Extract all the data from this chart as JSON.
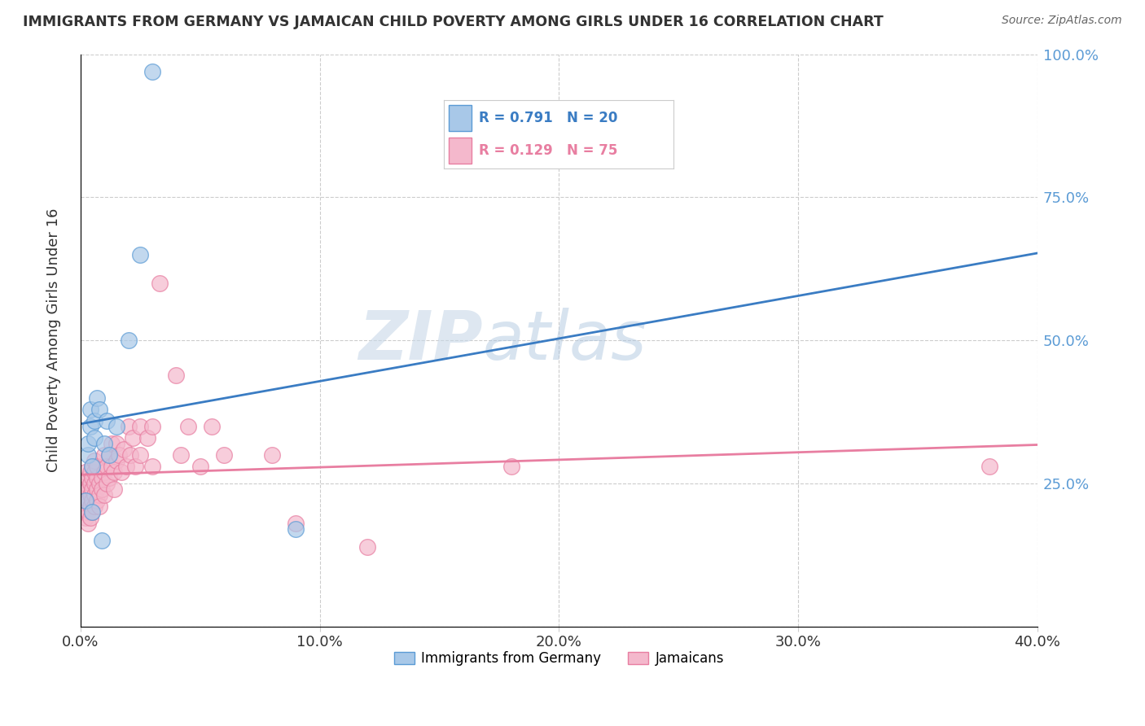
{
  "title": "IMMIGRANTS FROM GERMANY VS JAMAICAN CHILD POVERTY AMONG GIRLS UNDER 16 CORRELATION CHART",
  "source": "Source: ZipAtlas.com",
  "ylabel": "Child Poverty Among Girls Under 16",
  "watermark": "ZIPatlas",
  "legend": [
    {
      "label": "Immigrants from Germany",
      "color": "#6baed6",
      "R": 0.791,
      "N": 20
    },
    {
      "label": "Jamaicans",
      "color": "#fa9fb5",
      "R": 0.129,
      "N": 75
    }
  ],
  "xlim": [
    0.0,
    0.4
  ],
  "ylim": [
    0.0,
    1.0
  ],
  "xticks": [
    0.0,
    0.1,
    0.2,
    0.3,
    0.4
  ],
  "yticks": [
    0.0,
    0.25,
    0.5,
    0.75,
    1.0
  ],
  "xtick_labels": [
    "0.0%",
    "10.0%",
    "20.0%",
    "30.0%",
    "40.0%"
  ],
  "ytick_labels_right": [
    "",
    "25.0%",
    "50.0%",
    "75.0%",
    "100.0%"
  ],
  "blue_scatter": [
    [
      0.002,
      0.22
    ],
    [
      0.003,
      0.3
    ],
    [
      0.003,
      0.32
    ],
    [
      0.004,
      0.35
    ],
    [
      0.004,
      0.38
    ],
    [
      0.005,
      0.2
    ],
    [
      0.005,
      0.28
    ],
    [
      0.006,
      0.33
    ],
    [
      0.006,
      0.36
    ],
    [
      0.007,
      0.4
    ],
    [
      0.008,
      0.38
    ],
    [
      0.009,
      0.15
    ],
    [
      0.01,
      0.32
    ],
    [
      0.011,
      0.36
    ],
    [
      0.012,
      0.3
    ],
    [
      0.015,
      0.35
    ],
    [
      0.02,
      0.5
    ],
    [
      0.025,
      0.65
    ],
    [
      0.03,
      0.97
    ],
    [
      0.09,
      0.17
    ]
  ],
  "pink_scatter": [
    [
      0.001,
      0.22
    ],
    [
      0.001,
      0.24
    ],
    [
      0.001,
      0.2
    ],
    [
      0.002,
      0.23
    ],
    [
      0.002,
      0.25
    ],
    [
      0.002,
      0.21
    ],
    [
      0.002,
      0.27
    ],
    [
      0.002,
      0.19
    ],
    [
      0.003,
      0.22
    ],
    [
      0.003,
      0.24
    ],
    [
      0.003,
      0.26
    ],
    [
      0.003,
      0.2
    ],
    [
      0.003,
      0.18
    ],
    [
      0.004,
      0.23
    ],
    [
      0.004,
      0.25
    ],
    [
      0.004,
      0.21
    ],
    [
      0.004,
      0.27
    ],
    [
      0.004,
      0.19
    ],
    [
      0.005,
      0.24
    ],
    [
      0.005,
      0.26
    ],
    [
      0.005,
      0.22
    ],
    [
      0.005,
      0.2
    ],
    [
      0.005,
      0.28
    ],
    [
      0.006,
      0.23
    ],
    [
      0.006,
      0.25
    ],
    [
      0.006,
      0.21
    ],
    [
      0.006,
      0.27
    ],
    [
      0.006,
      0.29
    ],
    [
      0.007,
      0.24
    ],
    [
      0.007,
      0.22
    ],
    [
      0.007,
      0.26
    ],
    [
      0.007,
      0.28
    ],
    [
      0.008,
      0.25
    ],
    [
      0.008,
      0.23
    ],
    [
      0.008,
      0.21
    ],
    [
      0.009,
      0.26
    ],
    [
      0.009,
      0.24
    ],
    [
      0.01,
      0.27
    ],
    [
      0.01,
      0.23
    ],
    [
      0.01,
      0.3
    ],
    [
      0.011,
      0.28
    ],
    [
      0.011,
      0.25
    ],
    [
      0.012,
      0.26
    ],
    [
      0.012,
      0.3
    ],
    [
      0.013,
      0.28
    ],
    [
      0.013,
      0.32
    ],
    [
      0.014,
      0.27
    ],
    [
      0.014,
      0.24
    ],
    [
      0.015,
      0.32
    ],
    [
      0.015,
      0.29
    ],
    [
      0.016,
      0.3
    ],
    [
      0.017,
      0.27
    ],
    [
      0.018,
      0.31
    ],
    [
      0.019,
      0.28
    ],
    [
      0.02,
      0.35
    ],
    [
      0.021,
      0.3
    ],
    [
      0.022,
      0.33
    ],
    [
      0.023,
      0.28
    ],
    [
      0.025,
      0.35
    ],
    [
      0.025,
      0.3
    ],
    [
      0.028,
      0.33
    ],
    [
      0.03,
      0.28
    ],
    [
      0.03,
      0.35
    ],
    [
      0.033,
      0.6
    ],
    [
      0.04,
      0.44
    ],
    [
      0.042,
      0.3
    ],
    [
      0.045,
      0.35
    ],
    [
      0.05,
      0.28
    ],
    [
      0.055,
      0.35
    ],
    [
      0.06,
      0.3
    ],
    [
      0.08,
      0.3
    ],
    [
      0.09,
      0.18
    ],
    [
      0.12,
      0.14
    ],
    [
      0.18,
      0.28
    ],
    [
      0.38,
      0.28
    ]
  ],
  "blue_color": "#a8c8e8",
  "pink_color": "#f4b8cc",
  "blue_edge_color": "#5b9bd5",
  "pink_edge_color": "#e87ea1",
  "blue_line_color": "#3a7cc3",
  "pink_line_color": "#e87ea1",
  "background_color": "#ffffff",
  "grid_color": "#cccccc",
  "title_color": "#333333",
  "source_color": "#666666",
  "axis_label_color": "#333333",
  "tick_color": "#5b9bd5"
}
